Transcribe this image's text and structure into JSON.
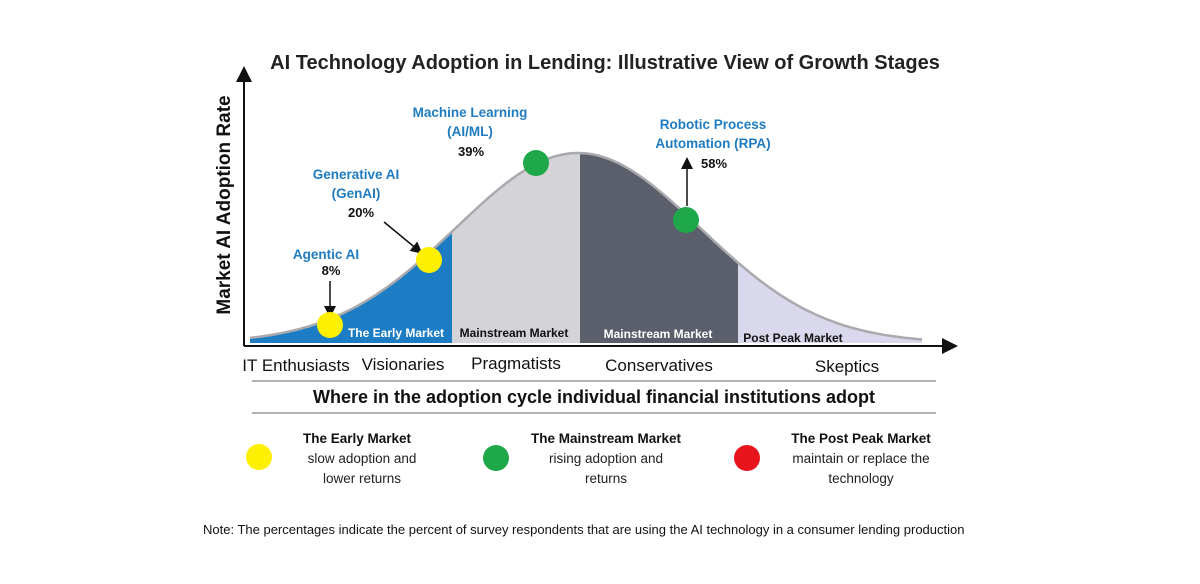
{
  "title": "AI Technology Adoption in Lending: Illustrative View of Growth Stages",
  "y_axis_label": "Market AI Adoption Rate",
  "technologies": [
    {
      "name": "Agentic AI",
      "value": "8%"
    },
    {
      "name": "Generative AI (GenAI)",
      "name_line1": "Generative AI",
      "name_line2": "(GenAI)",
      "value": "20%"
    },
    {
      "name": "Machine Learning (AI/ML)",
      "name_line1": "Machine Learning",
      "name_line2": "(AI/ML)",
      "value": "39%"
    },
    {
      "name": "Robotic Process Automation (RPA)",
      "name_line1": "Robotic Process",
      "name_line2": "Automation (RPA)",
      "value": "58%"
    }
  ],
  "curve_regions": [
    "The Early Market",
    "Mainstream Market",
    "Mainstream Market",
    "Post Peak Market"
  ],
  "segments": [
    "IT Enthusiasts",
    "Visionaries",
    "Pragmatists",
    "Conservatives",
    "Skeptics"
  ],
  "subtitle": "Where in the adoption cycle individual financial institutions adopt",
  "legend": [
    {
      "title": "The Early Market",
      "line1": "slow adoption and",
      "line2": "lower returns",
      "color": "#ffef00"
    },
    {
      "title": "The Mainstream Market",
      "line1": "rising adoption and",
      "line2": "returns",
      "color": "#1ea84a"
    },
    {
      "title": "The Post Peak Market",
      "line1": "maintain or replace the",
      "line2": "technology",
      "color": "#e8141b"
    }
  ],
  "note": "Note: The percentages indicate the percent of survey respondents that are using the AI technology in a consumer lending production",
  "colors": {
    "early_fill": "#1c7dc4",
    "mainstream_light": "#d4d4d8",
    "mainstream_dark": "#5b5e6b",
    "post_peak": "#d9d8ec",
    "label_blue": "#1f7cc0",
    "yellow_marker": "#ffef00",
    "green_marker": "#1ea84a"
  }
}
